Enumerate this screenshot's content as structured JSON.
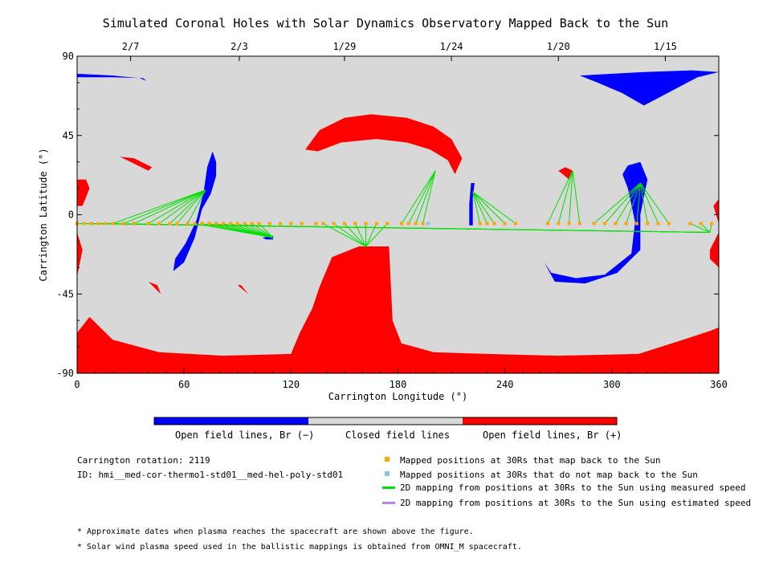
{
  "title": "Simulated Coronal Holes with Solar Dynamics Observatory Mapped Back to the Sun",
  "colors": {
    "closed": "#d8d8d8",
    "open_negative": "#0000ff",
    "open_positive": "#ff0000",
    "mapped_back": "#ffa500",
    "not_mapped_back": "#87bfee",
    "measured_speed": "#00e000",
    "estimated_speed": "#c080f0"
  },
  "chart_data": {
    "type": "map",
    "xlabel": "Carrington Longitude (°)",
    "ylabel": "Carrington Latitude (°)",
    "xlim": [
      0,
      360
    ],
    "ylim": [
      -90,
      90
    ],
    "x_ticks": [
      0,
      60,
      120,
      180,
      240,
      300,
      360
    ],
    "y_ticks": [
      90,
      45,
      0,
      -45,
      -90
    ],
    "x_tick_labels": [
      "0",
      "60",
      "120",
      "180",
      "240",
      "300",
      "360"
    ],
    "y_tick_labels": [
      "90",
      "45",
      "0",
      "-45",
      "-90"
    ],
    "top_axis_dates": [
      {
        "label": "2/7",
        "lon": 30
      },
      {
        "label": "2/3",
        "lon": 91
      },
      {
        "label": "1/29",
        "lon": 150
      },
      {
        "label": "1/24",
        "lon": 210
      },
      {
        "label": "1/20",
        "lon": 270
      },
      {
        "label": "1/15",
        "lon": 330
      }
    ],
    "regions": {
      "negative": [
        [
          [
            0,
            80
          ],
          [
            20,
            79
          ],
          [
            35,
            77.5
          ],
          [
            39,
            76
          ],
          [
            37,
            77.5
          ],
          [
            20,
            78
          ],
          [
            0,
            78
          ]
        ],
        [
          [
            282,
            79
          ],
          [
            300,
            80
          ],
          [
            318,
            81
          ],
          [
            345,
            82
          ],
          [
            360,
            81
          ],
          [
            348,
            78
          ],
          [
            333,
            70
          ],
          [
            318,
            62
          ],
          [
            306,
            69
          ],
          [
            292,
            75
          ]
        ],
        [
          [
            73,
            27
          ],
          [
            76,
            36
          ],
          [
            78,
            30
          ],
          [
            78,
            22
          ],
          [
            75,
            12
          ],
          [
            70,
            3
          ],
          [
            66,
            -13
          ],
          [
            60,
            -27
          ],
          [
            54,
            -32
          ],
          [
            55,
            -25
          ],
          [
            61,
            -16
          ],
          [
            67,
            -3
          ],
          [
            71,
            13
          ]
        ],
        [
          [
            110,
            -12
          ],
          [
            104,
            -13
          ],
          [
            106,
            -14
          ],
          [
            110,
            -14
          ]
        ],
        [
          [
            221,
            18
          ],
          [
            223,
            18
          ],
          [
            222,
            10
          ],
          [
            222,
            -6
          ],
          [
            220,
            -6
          ],
          [
            220,
            6
          ]
        ],
        [
          [
            309,
            28
          ],
          [
            316,
            30
          ],
          [
            320,
            20
          ],
          [
            316,
            0
          ],
          [
            316,
            -20
          ],
          [
            303,
            -33
          ],
          [
            285,
            -39
          ],
          [
            268,
            -38
          ],
          [
            262,
            -27
          ],
          [
            266,
            -33
          ],
          [
            280,
            -36
          ],
          [
            296,
            -34
          ],
          [
            311,
            -22
          ],
          [
            313,
            -4
          ],
          [
            309,
            15
          ],
          [
            306,
            23
          ]
        ]
      ],
      "positive": [
        [
          [
            0,
            -67
          ],
          [
            7,
            -58
          ],
          [
            20,
            -71
          ],
          [
            46,
            -78
          ],
          [
            82,
            -80
          ],
          [
            120,
            -79
          ],
          [
            125,
            -67
          ],
          [
            132,
            -53
          ],
          [
            136,
            -41
          ],
          [
            143,
            -24
          ],
          [
            158,
            -18
          ],
          [
            175,
            -18
          ],
          [
            177,
            -60
          ],
          [
            182,
            -73
          ],
          [
            200,
            -78
          ],
          [
            230,
            -79
          ],
          [
            270,
            -80
          ],
          [
            315,
            -79
          ],
          [
            340,
            -71
          ],
          [
            355,
            -66
          ],
          [
            360,
            -64
          ],
          [
            360,
            -90
          ],
          [
            0,
            -90
          ]
        ],
        [
          [
            128,
            37
          ],
          [
            136,
            48
          ],
          [
            150,
            55
          ],
          [
            165,
            57
          ],
          [
            185,
            55
          ],
          [
            200,
            50
          ],
          [
            210,
            43
          ],
          [
            216,
            32
          ],
          [
            212,
            23
          ],
          [
            208,
            31
          ],
          [
            198,
            37
          ],
          [
            185,
            41
          ],
          [
            168,
            43
          ],
          [
            148,
            41
          ],
          [
            135,
            36
          ]
        ],
        [
          [
            24,
            33
          ],
          [
            32,
            29
          ],
          [
            40,
            25
          ],
          [
            42,
            27
          ],
          [
            32,
            32
          ]
        ],
        [
          [
            0,
            20
          ],
          [
            5,
            20
          ],
          [
            7,
            15
          ],
          [
            3,
            5
          ],
          [
            0,
            5
          ]
        ],
        [
          [
            0,
            -10
          ],
          [
            3,
            -20
          ],
          [
            0,
            -35
          ]
        ],
        [
          [
            355,
            -20
          ],
          [
            360,
            -10
          ],
          [
            360,
            -30
          ],
          [
            355,
            -25
          ]
        ],
        [
          [
            357,
            5
          ],
          [
            360,
            9
          ],
          [
            360,
            -5
          ]
        ],
        [
          [
            270,
            25
          ],
          [
            274,
            27
          ],
          [
            278,
            25
          ],
          [
            276,
            20
          ]
        ],
        [
          [
            40,
            -38
          ],
          [
            47,
            -45
          ],
          [
            45,
            -40
          ]
        ],
        [
          [
            90,
            -40
          ],
          [
            96,
            -45
          ],
          [
            92,
            -40
          ]
        ]
      ]
    },
    "footpoints": [
      {
        "lon": 72,
        "lat": 14
      },
      {
        "lon": 110,
        "lat": -13
      },
      {
        "lon": 162,
        "lat": -18
      },
      {
        "lon": 201,
        "lat": 25
      },
      {
        "lon": 222,
        "lat": 13
      },
      {
        "lon": 278,
        "lat": 25
      },
      {
        "lon": 316,
        "lat": 18
      },
      {
        "lon": 355,
        "lat": -10
      }
    ],
    "mapped_positions_back": [
      [
        0,
        -5,
        7
      ],
      [
        4,
        -5,
        7
      ],
      [
        8,
        -5,
        7
      ],
      [
        12,
        -5,
        7
      ],
      [
        16,
        -5,
        7
      ],
      [
        20,
        -5,
        0
      ],
      [
        26,
        -5,
        0
      ],
      [
        32,
        -5,
        0
      ],
      [
        40,
        -5,
        0
      ],
      [
        46,
        -5,
        0
      ],
      [
        52,
        -5,
        0
      ],
      [
        56,
        -5,
        0
      ],
      [
        62,
        -5,
        0
      ],
      [
        66,
        -5,
        1
      ],
      [
        70,
        -5,
        1
      ],
      [
        74,
        -5,
        1
      ],
      [
        78,
        -5,
        1
      ],
      [
        82,
        -5,
        1
      ],
      [
        86,
        -5,
        1
      ],
      [
        90,
        -5,
        1
      ],
      [
        94,
        -5,
        1
      ],
      [
        98,
        -5,
        1
      ],
      [
        102,
        -5,
        1
      ],
      [
        108,
        -5,
        -1
      ],
      [
        114,
        -5,
        -1
      ],
      [
        120,
        -5,
        -1
      ],
      [
        126,
        -5,
        -1
      ],
      [
        134,
        -5,
        -1
      ],
      [
        138,
        -5,
        2
      ],
      [
        144,
        -5,
        2
      ],
      [
        150,
        -5,
        2
      ],
      [
        156,
        -5,
        2
      ],
      [
        162,
        -5,
        2
      ],
      [
        168,
        -5,
        2
      ],
      [
        174,
        -5,
        2
      ],
      [
        182,
        -5,
        3
      ],
      [
        186,
        -5,
        3
      ],
      [
        190,
        -5,
        3
      ],
      [
        194,
        -5,
        3
      ],
      [
        226,
        -5,
        4
      ],
      [
        230,
        -5,
        4
      ],
      [
        234,
        -5,
        4
      ],
      [
        240,
        -5,
        4
      ],
      [
        246,
        -5,
        4
      ],
      [
        264,
        -5,
        5
      ],
      [
        270,
        -5,
        5
      ],
      [
        276,
        -5,
        5
      ],
      [
        282,
        -5,
        5
      ],
      [
        290,
        -5,
        6
      ],
      [
        296,
        -5,
        6
      ],
      [
        302,
        -5,
        6
      ],
      [
        308,
        -5,
        6
      ],
      [
        314,
        -5,
        6
      ],
      [
        320,
        -5,
        6
      ],
      [
        326,
        -5,
        6
      ],
      [
        332,
        -5,
        6
      ],
      [
        344,
        -5,
        7
      ],
      [
        350,
        -5,
        7
      ],
      [
        356,
        -5,
        7
      ]
    ],
    "mapped_positions_not_back": [
      [
        197,
        -5
      ]
    ]
  },
  "colorbar_labels": {
    "negative": "Open field lines, Br (−)",
    "closed": "Closed field lines",
    "positive": "Open field lines, Br (+)"
  },
  "info": {
    "rotation": "Carrington rotation: 2119",
    "id": "ID: hmi__med-cor-thermo1-std01__med-hel-poly-std01"
  },
  "legend": {
    "mapped_back": "Mapped positions at 30Rs that map back to the Sun",
    "not_mapped_back": "Mapped positions at 30Rs that do not map back to the Sun",
    "measured": "2D mapping from positions at 30Rs to the Sun using measured speed",
    "estimated": "2D mapping from positions at 30Rs to the Sun using estimated speed"
  },
  "notes": {
    "dates": "* Approximate dates when plasma reaches the spacecraft are shown above the figure.",
    "speed": "* Solar wind plasma speed used in the ballistic mappings is obtained from OMNI_M spacecraft."
  }
}
